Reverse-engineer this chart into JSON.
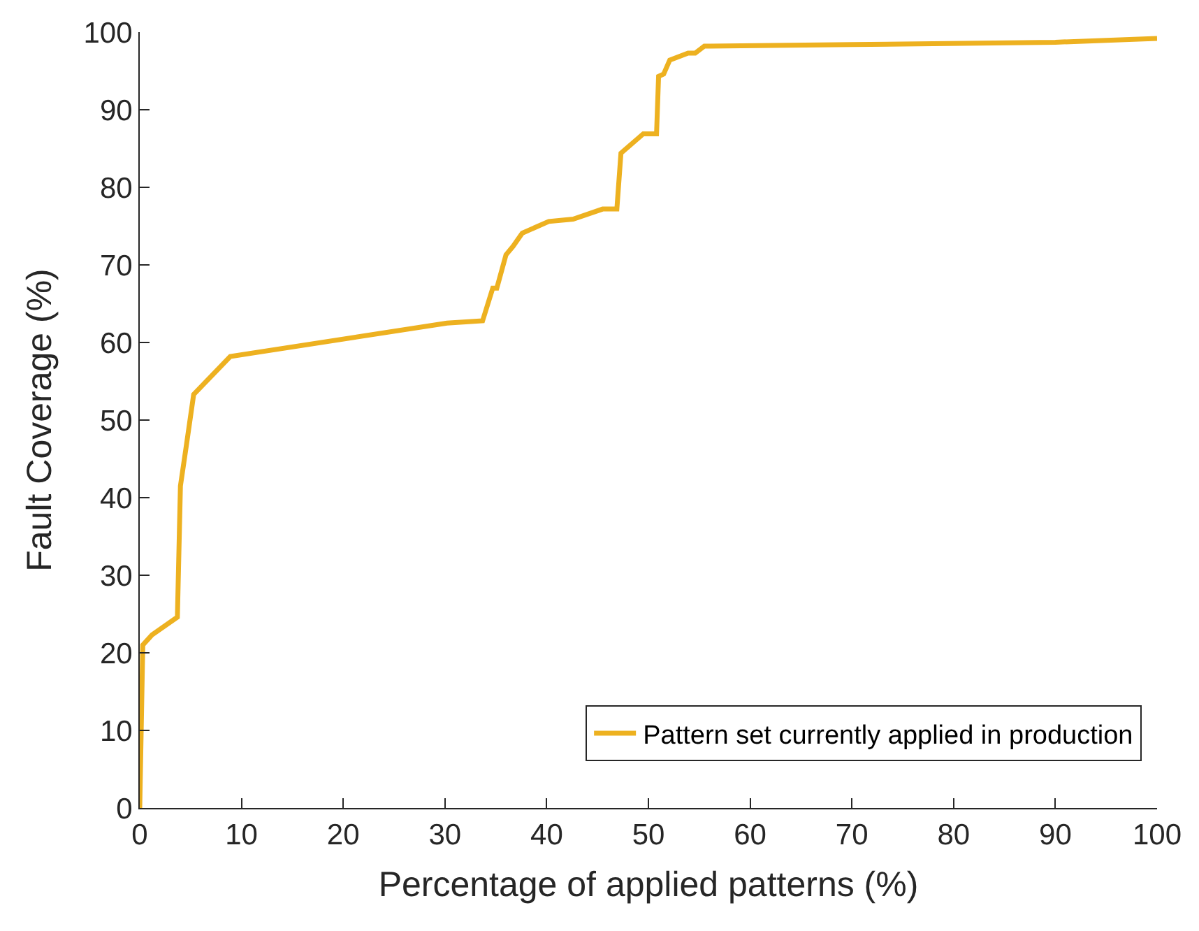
{
  "chart_data": {
    "type": "line",
    "xlabel": "Percentage of applied patterns (%)",
    "ylabel": "Fault Coverage (%)",
    "xlim": [
      0,
      100
    ],
    "ylim": [
      0,
      100
    ],
    "xticks": [
      0,
      10,
      20,
      30,
      40,
      50,
      60,
      70,
      80,
      90,
      100
    ],
    "yticks": [
      0,
      10,
      20,
      30,
      40,
      50,
      60,
      70,
      80,
      90,
      100
    ],
    "grid": false,
    "legend": "bottom right",
    "marker": "none",
    "line_style": "solid",
    "series": [
      {
        "name": "Pattern set currently applied in production",
        "color": "#edb120",
        "x": [
          0,
          0.3,
          1.2,
          3.7,
          4.0,
          4.6,
          5.3,
          8.9,
          30.2,
          33.7,
          34.7,
          35.1,
          36.0,
          36.7,
          37.6,
          40.2,
          42.6,
          45.5,
          46.9,
          47.3,
          49.5,
          50.8,
          51.0,
          51.5,
          52.1,
          53.9,
          54.6,
          55.5,
          70,
          90,
          100
        ],
        "values": [
          0,
          21,
          22.3,
          24.6,
          41.5,
          46.9,
          53.3,
          58.2,
          62.5,
          62.8,
          67.0,
          67.0,
          71.3,
          72.4,
          74.1,
          75.6,
          75.9,
          77.2,
          77.2,
          84.4,
          86.9,
          86.9,
          94.3,
          94.6,
          96.4,
          97.3,
          97.3,
          98.2,
          98.4,
          98.7,
          99.2
        ]
      }
    ]
  }
}
